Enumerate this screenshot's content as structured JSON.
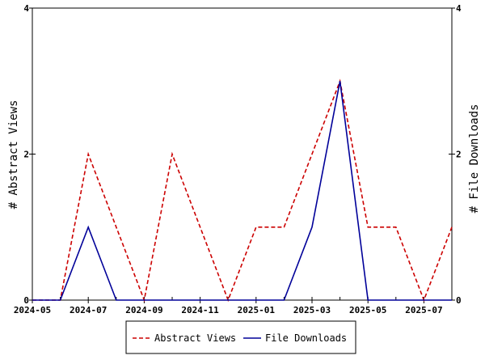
{
  "chart_data": {
    "type": "line",
    "x": [
      "2024-05",
      "2024-06",
      "2024-07",
      "2024-08",
      "2024-09",
      "2024-10",
      "2024-11",
      "2024-12",
      "2025-01",
      "2025-02",
      "2025-03",
      "2025-04",
      "2025-05",
      "2025-06",
      "2025-07",
      "2025-08"
    ],
    "x_tick_labels": [
      "2024-05",
      "2024-07",
      "2024-09",
      "2024-11",
      "2025-01",
      "2025-03",
      "2025-05",
      "2025-07"
    ],
    "series": [
      {
        "name": "Abstract Views",
        "axis": "left",
        "style": "dashed",
        "color": "#cc0000",
        "values": [
          0,
          0,
          2,
          1,
          0,
          2,
          1,
          0,
          1,
          1,
          2,
          3,
          1,
          1,
          0,
          1
        ]
      },
      {
        "name": "File Downloads",
        "axis": "right",
        "style": "solid",
        "color": "#000099",
        "values": [
          0,
          0,
          1,
          0,
          0,
          0,
          0,
          0,
          0,
          0,
          1,
          3,
          0,
          0,
          0,
          0
        ]
      }
    ],
    "ylabel_left": "# Abstract Views",
    "ylabel_right": "# File Downloads",
    "ylim_left": [
      0,
      4
    ],
    "ylim_right": [
      0,
      4
    ],
    "y_ticks_left": [
      "0",
      "2",
      "4"
    ],
    "y_ticks_right": [
      "0",
      "2",
      "4"
    ],
    "grid": false,
    "legend_position": "bottom-center"
  }
}
